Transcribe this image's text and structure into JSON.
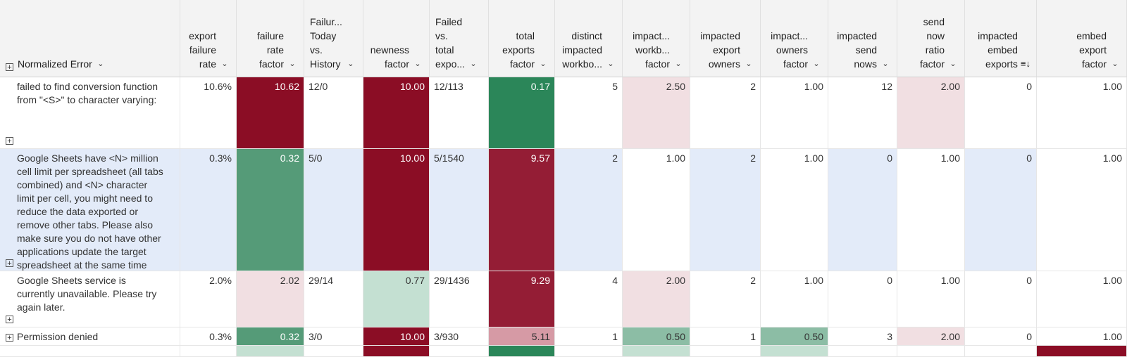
{
  "columns": [
    {
      "id": "normalized_error",
      "label_lines": [
        "Normalized Error"
      ],
      "align": "left",
      "has_expand": true
    },
    {
      "id": "export_failure_rate",
      "label_lines": [
        "export",
        "failure",
        "rate"
      ]
    },
    {
      "id": "failure_rate_factor",
      "label_lines": [
        "failure",
        "rate",
        "factor"
      ]
    },
    {
      "id": "failure_today_history",
      "label_lines": [
        "Failur...",
        "Today",
        "vs.",
        "History"
      ],
      "align": "left"
    },
    {
      "id": "newness_factor",
      "label_lines": [
        "newness",
        "factor"
      ]
    },
    {
      "id": "failed_vs_total",
      "label_lines": [
        "Failed",
        "vs.",
        "total",
        "expo..."
      ],
      "align": "left"
    },
    {
      "id": "total_exports_factor",
      "label_lines": [
        "total",
        "exports",
        "factor"
      ]
    },
    {
      "id": "distinct_impacted_workbooks",
      "label_lines": [
        "distinct",
        "impacted",
        "workbo..."
      ]
    },
    {
      "id": "impacted_workbooks_factor",
      "label_lines": [
        "impact...",
        "workb...",
        "factor"
      ]
    },
    {
      "id": "impacted_export_owners",
      "label_lines": [
        "impacted",
        "export",
        "owners"
      ]
    },
    {
      "id": "impacted_owners_factor",
      "label_lines": [
        "impact...",
        "owners",
        "factor"
      ]
    },
    {
      "id": "impacted_send_nows",
      "label_lines": [
        "impacted",
        "send",
        "nows"
      ]
    },
    {
      "id": "send_now_ratio_factor",
      "label_lines": [
        "send",
        "now",
        "ratio",
        "factor"
      ]
    },
    {
      "id": "impacted_embed_exports",
      "label_lines": [
        "impacted",
        "embed",
        "exports"
      ],
      "sorted": true
    },
    {
      "id": "embed_export_factor",
      "label_lines": [
        "embed",
        "export",
        "factor"
      ]
    }
  ],
  "icons": {
    "expand": "plus-icon",
    "chevron": "chevron-down-icon",
    "sort": "sort-descending-icon"
  },
  "colors": {
    "dark_red": "#8b0d25",
    "mid_red": "#941d35",
    "pink": "#d69aa5",
    "light_pink": "#f1dfe2",
    "dark_green": "#2b8659",
    "mid_green": "#559b78",
    "soft_green": "#8cbda5",
    "pale_green": "#c4e0d2",
    "highlight_row": "#e3ebf9"
  },
  "rows": [
    {
      "error_lines": [
        "failed to find conversion function",
        "from \"<S>\" to character varying:"
      ],
      "cells": [
        "10.6%",
        "10.62",
        "12/0",
        "10.00",
        "12/113",
        "0.17",
        "5",
        "2.50",
        "2",
        "1.00",
        "12",
        "2.00",
        "0",
        "1.00"
      ],
      "cell_colors": [
        null,
        "dark_red",
        null,
        "dark_red",
        null,
        "dark_green",
        null,
        "light_pink",
        null,
        null,
        null,
        "light_pink",
        null,
        null
      ]
    },
    {
      "error_lines": [
        "Google Sheets have <N> million",
        "cell limit per spreadsheet (all tabs",
        "combined) and <N> character",
        "limit per cell, you might need to",
        "reduce the data exported or",
        "remove other tabs. Please also",
        "make sure you do not have other",
        "applications update the target",
        "spreadsheet at the same time"
      ],
      "highlighted": true,
      "cells": [
        "0.3%",
        "0.32",
        "5/0",
        "10.00",
        "5/1540",
        "9.57",
        "2",
        "1.00",
        "2",
        "1.00",
        "0",
        "1.00",
        "0",
        "1.00"
      ],
      "cell_colors": [
        null,
        "mid_green",
        null,
        "dark_red",
        null,
        "mid_red",
        null,
        "white",
        null,
        "white",
        null,
        "white",
        null,
        "white"
      ]
    },
    {
      "error_lines": [
        "Google Sheets service is",
        "currently unavailable. Please try",
        "again later."
      ],
      "cells": [
        "2.0%",
        "2.02",
        "29/14",
        "0.77",
        "29/1436",
        "9.29",
        "4",
        "2.00",
        "2",
        "1.00",
        "0",
        "1.00",
        "0",
        "1.00"
      ],
      "cell_colors": [
        null,
        "light_pink",
        null,
        "pale_green",
        null,
        "mid_red",
        null,
        "light_pink",
        null,
        null,
        null,
        null,
        null,
        null
      ]
    },
    {
      "error_lines": [
        "Permission denied"
      ],
      "cells": [
        "0.3%",
        "0.32",
        "3/0",
        "10.00",
        "3/930",
        "5.11",
        "1",
        "0.50",
        "1",
        "0.50",
        "3",
        "2.00",
        "0",
        "1.00"
      ],
      "cell_colors": [
        null,
        "mid_green",
        null,
        "dark_red",
        null,
        "pink",
        null,
        "soft_green",
        null,
        "soft_green",
        null,
        "light_pink",
        null,
        null
      ]
    }
  ]
}
